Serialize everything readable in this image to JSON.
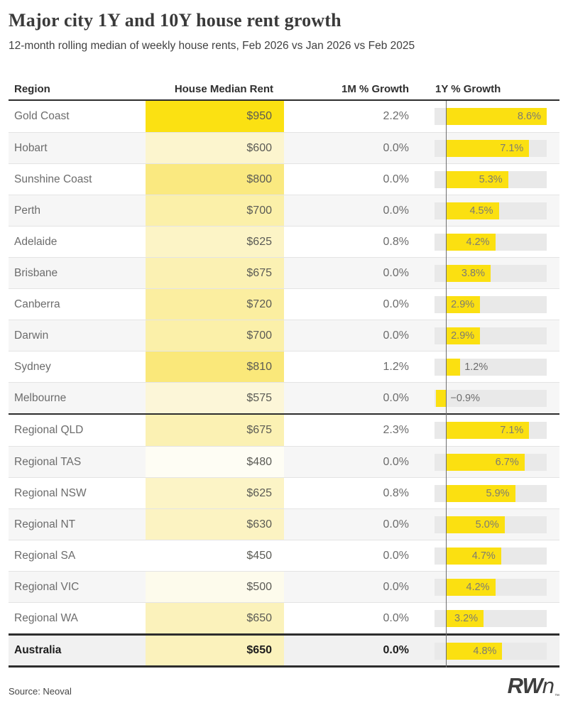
{
  "header": {
    "title": "Major city 1Y and 10Y house rent growth",
    "subtitle": "12-month rolling median of weekly house rents, Feb 2026 vs Jan 2026 vs Feb 2025"
  },
  "columns": {
    "region": "Region",
    "rent": "House Median Rent",
    "m1": "1M % Growth",
    "y1": "1Y % Growth"
  },
  "footer": {
    "source": "Source: Neoval",
    "logo_rw": "RW",
    "logo_n": "n",
    "logo_tm": "™"
  },
  "colors": {
    "bar_yellow": "#FBE011",
    "track_gray": "#e9e9e9",
    "alt_row": "#f6f6f6",
    "total_row": "#f1f1f1",
    "rule_dark": "#2d2d2d",
    "axis_gray": "#6f6f6f"
  },
  "chart_data": {
    "type": "table",
    "title": "Major city 1Y and 10Y house rent growth",
    "subtitle": "12-month rolling median of weekly house rents, Feb 2026 vs Jan 2026 vs Feb 2025",
    "columns": [
      "Region",
      "House Median Rent",
      "1M % Growth",
      "1Y % Growth"
    ],
    "bar_column": "1Y % Growth",
    "bar_axis": {
      "min": -1.0,
      "max": 8.6,
      "zero_line": true
    },
    "heat_column": "House Median Rent",
    "heat_range": {
      "min": 450,
      "max": 950
    },
    "source": "Source: Neoval",
    "sections": [
      {
        "name": "cities",
        "rows": [
          {
            "region": "Gold Coast",
            "rent": "$950",
            "rent_value": 950,
            "m1": "2.2%",
            "y1": 8.6,
            "y1_label": "8.6%",
            "heat": "#FBE112"
          },
          {
            "region": "Hobart",
            "rent": "$600",
            "rent_value": 600,
            "m1": "0.0%",
            "y1": 7.1,
            "y1_label": "7.1%",
            "heat": "#FCF5CE"
          },
          {
            "region": "Sunshine Coast",
            "rent": "$800",
            "rent_value": 800,
            "m1": "0.0%",
            "y1": 5.3,
            "y1_label": "5.3%",
            "heat": "#FAE980"
          },
          {
            "region": "Perth",
            "rent": "$700",
            "rent_value": 700,
            "m1": "0.0%",
            "y1": 4.5,
            "y1_label": "4.5%",
            "heat": "#FBF0A9"
          },
          {
            "region": "Adelaide",
            "rent": "$625",
            "rent_value": 625,
            "m1": "0.8%",
            "y1": 4.2,
            "y1_label": "4.2%",
            "heat": "#FCF4C6"
          },
          {
            "region": "Brisbane",
            "rent": "$675",
            "rent_value": 675,
            "m1": "0.0%",
            "y1": 3.8,
            "y1_label": "3.8%",
            "heat": "#FBF1B3"
          },
          {
            "region": "Canberra",
            "rent": "$720",
            "rent_value": 720,
            "m1": "0.0%",
            "y1": 2.9,
            "y1_label": "2.9%",
            "heat": "#FBEEA0"
          },
          {
            "region": "Darwin",
            "rent": "$700",
            "rent_value": 700,
            "m1": "0.0%",
            "y1": 2.9,
            "y1_label": "2.9%",
            "heat": "#FBF0A9"
          },
          {
            "region": "Sydney",
            "rent": "$810",
            "rent_value": 810,
            "m1": "1.2%",
            "y1": 1.2,
            "y1_label": "1.2%",
            "heat": "#FAE87A"
          },
          {
            "region": "Melbourne",
            "rent": "$575",
            "rent_value": 575,
            "m1": "0.0%",
            "y1": -0.9,
            "y1_label": "−0.9%",
            "heat": "#FCF6D8"
          }
        ]
      },
      {
        "name": "regional",
        "rows": [
          {
            "region": "Regional QLD",
            "rent": "$675",
            "rent_value": 675,
            "m1": "2.3%",
            "y1": 7.1,
            "y1_label": "7.1%",
            "heat": "#FBF1B3"
          },
          {
            "region": "Regional TAS",
            "rent": "$480",
            "rent_value": 480,
            "m1": "0.0%",
            "y1": 6.7,
            "y1_label": "6.7%",
            "heat": "#FEFDF4"
          },
          {
            "region": "Regional NSW",
            "rent": "$625",
            "rent_value": 625,
            "m1": "0.8%",
            "y1": 5.9,
            "y1_label": "5.9%",
            "heat": "#FCF4C6"
          },
          {
            "region": "Regional NT",
            "rent": "$630",
            "rent_value": 630,
            "m1": "0.0%",
            "y1": 5.0,
            "y1_label": "5.0%",
            "heat": "#FCF3C2"
          },
          {
            "region": "Regional SA",
            "rent": "$450",
            "rent_value": 450,
            "m1": "0.0%",
            "y1": 4.7,
            "y1_label": "4.7%",
            "heat": "#FFFFFF"
          },
          {
            "region": "Regional VIC",
            "rent": "$500",
            "rent_value": 500,
            "m1": "0.0%",
            "y1": 4.2,
            "y1_label": "4.2%",
            "heat": "#FDFBEC"
          },
          {
            "region": "Regional WA",
            "rent": "$650",
            "rent_value": 650,
            "m1": "0.0%",
            "y1": 3.2,
            "y1_label": "3.2%",
            "heat": "#FBF2BB"
          }
        ]
      },
      {
        "name": "total",
        "rows": [
          {
            "region": "Australia",
            "rent": "$650",
            "rent_value": 650,
            "m1": "0.0%",
            "y1": 4.8,
            "y1_label": "4.8%",
            "heat": "#FBF2BC",
            "bold": true
          }
        ]
      }
    ]
  }
}
